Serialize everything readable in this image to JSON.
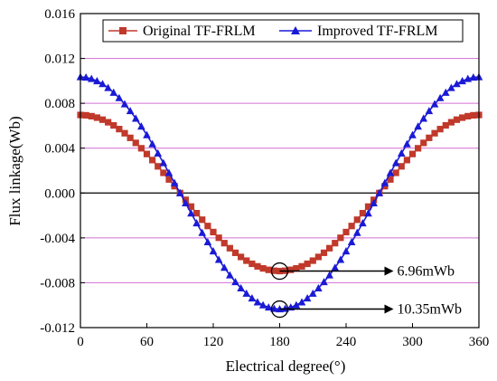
{
  "chart_data": {
    "type": "line",
    "xlabel": "Electrical degree(°)",
    "ylabel": "Flux linkage(Wb)",
    "xlim": [
      0,
      360
    ],
    "ylim": [
      -0.012,
      0.016
    ],
    "xticks": [
      "0",
      "60",
      "120",
      "180",
      "240",
      "300",
      "360"
    ],
    "yticks": [
      "-0.012",
      "-0.008",
      "-0.004",
      "0.000",
      "0.004",
      "0.008",
      "0.012",
      "0.016"
    ],
    "grid": "horizontal",
    "legend_position": "top",
    "series": [
      {
        "name": "Original TF-FRLM",
        "color": "#c0392b",
        "marker": "square",
        "x": [
          0,
          5,
          10,
          15,
          20,
          25,
          30,
          35,
          40,
          45,
          50,
          55,
          60,
          65,
          70,
          75,
          80,
          85,
          90,
          95,
          100,
          105,
          110,
          115,
          120,
          125,
          130,
          135,
          140,
          145,
          150,
          155,
          160,
          165,
          170,
          175,
          180,
          185,
          190,
          195,
          200,
          205,
          210,
          215,
          220,
          225,
          230,
          235,
          240,
          245,
          250,
          255,
          260,
          265,
          270,
          275,
          280,
          285,
          290,
          295,
          300,
          305,
          310,
          315,
          320,
          325,
          330,
          335,
          340,
          345,
          350,
          355,
          360
        ],
        "values": [
          0.00696,
          0.00693,
          0.00685,
          0.00672,
          0.00654,
          0.00631,
          0.00603,
          0.0057,
          0.00533,
          0.00492,
          0.00447,
          0.00399,
          0.00348,
          0.00294,
          0.00238,
          0.0018,
          0.00121,
          0.00061,
          0.0,
          -0.00061,
          -0.00121,
          -0.0018,
          -0.00238,
          -0.00294,
          -0.00348,
          -0.00399,
          -0.00447,
          -0.00492,
          -0.00533,
          -0.0057,
          -0.00603,
          -0.00631,
          -0.00654,
          -0.00672,
          -0.00685,
          -0.00693,
          -0.00696,
          -0.00693,
          -0.00685,
          -0.00672,
          -0.00654,
          -0.00631,
          -0.00603,
          -0.0057,
          -0.00533,
          -0.00492,
          -0.00447,
          -0.00399,
          -0.00348,
          -0.00294,
          -0.00238,
          -0.0018,
          -0.00121,
          -0.00061,
          0.0,
          0.00061,
          0.00121,
          0.0018,
          0.00238,
          0.00294,
          0.00348,
          0.00399,
          0.00447,
          0.00492,
          0.00533,
          0.0057,
          0.00603,
          0.00631,
          0.00654,
          0.00672,
          0.00685,
          0.00693,
          0.00696
        ]
      },
      {
        "name": "Improved TF-FRLM",
        "color": "#1a1ad6",
        "marker": "triangle",
        "x": [
          0,
          5,
          10,
          15,
          20,
          25,
          30,
          35,
          40,
          45,
          50,
          55,
          60,
          65,
          70,
          75,
          80,
          85,
          90,
          95,
          100,
          105,
          110,
          115,
          120,
          125,
          130,
          135,
          140,
          145,
          150,
          155,
          160,
          165,
          170,
          175,
          180,
          185,
          190,
          195,
          200,
          205,
          210,
          215,
          220,
          225,
          230,
          235,
          240,
          245,
          250,
          255,
          260,
          265,
          270,
          275,
          280,
          285,
          290,
          295,
          300,
          305,
          310,
          315,
          320,
          325,
          330,
          335,
          340,
          345,
          350,
          355,
          360
        ],
        "values": [
          0.01035,
          0.01031,
          0.01019,
          0.00999,
          0.00973,
          0.00938,
          0.00896,
          0.00848,
          0.00793,
          0.00732,
          0.00665,
          0.00594,
          0.00518,
          0.00437,
          0.00354,
          0.00268,
          0.0018,
          0.0009,
          0.0,
          -0.0009,
          -0.0018,
          -0.00268,
          -0.00354,
          -0.00437,
          -0.00518,
          -0.00594,
          -0.00665,
          -0.00732,
          -0.00793,
          -0.00848,
          -0.00896,
          -0.00938,
          -0.00973,
          -0.00999,
          -0.01019,
          -0.01031,
          -0.01035,
          -0.01031,
          -0.01019,
          -0.00999,
          -0.00973,
          -0.00938,
          -0.00896,
          -0.00848,
          -0.00793,
          -0.00732,
          -0.00665,
          -0.00594,
          -0.00518,
          -0.00437,
          -0.00354,
          -0.00268,
          -0.0018,
          -0.0009,
          0.0,
          0.0009,
          0.0018,
          0.00268,
          0.00354,
          0.00437,
          0.00518,
          0.00594,
          0.00665,
          0.00732,
          0.00793,
          0.00848,
          0.00896,
          0.00938,
          0.00973,
          0.00999,
          0.01019,
          0.01031,
          0.01035
        ]
      }
    ],
    "annotations": [
      {
        "text": "6.96mWb",
        "x": 180,
        "y": -0.00696
      },
      {
        "text": "10.35mWb",
        "x": 180,
        "y": -0.01035
      }
    ]
  },
  "colors": {
    "grid": "#d36fd3",
    "zero_line": "#000000"
  }
}
